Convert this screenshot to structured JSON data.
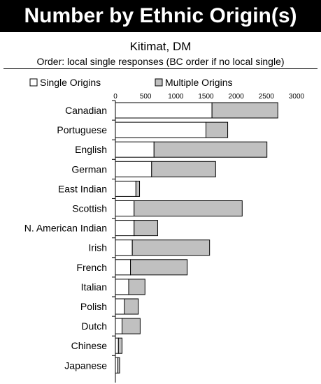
{
  "chart_data": {
    "type": "bar",
    "orientation": "horizontal",
    "stacked": true,
    "title": "Number by Ethnic Origin(s)",
    "subtitle": "Kitimat, DM",
    "note": "Order: local single responses (BC order if no local single)",
    "categories": [
      "Canadian",
      "Portuguese",
      "English",
      "German",
      "East Indian",
      "Scottish",
      "N. American Indian",
      "Irish",
      "French",
      "Italian",
      "Polish",
      "Dutch",
      "Chinese",
      "Japanese"
    ],
    "series": [
      {
        "name": "Single Origins",
        "color": "#ffffff",
        "values": [
          1600,
          1500,
          640,
          600,
          340,
          310,
          310,
          280,
          250,
          220,
          150,
          110,
          50,
          40
        ]
      },
      {
        "name": "Multiple Origins",
        "color": "#c0c0c0",
        "values": [
          1090,
          360,
          1870,
          1060,
          60,
          1790,
          390,
          1280,
          940,
          270,
          230,
          300,
          60,
          30
        ]
      }
    ],
    "xlim": [
      0,
      3000
    ],
    "xticks": [
      "0",
      "500",
      "1000",
      "1500",
      "2000",
      "2500",
      "3000"
    ],
    "legend_position": "top"
  }
}
